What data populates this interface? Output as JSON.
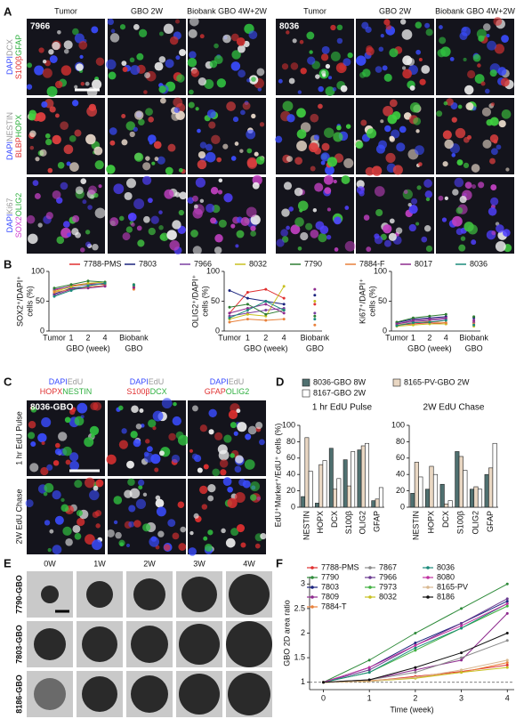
{
  "panels": [
    "A",
    "B",
    "C",
    "D",
    "E",
    "F"
  ],
  "panel_a": {
    "columns": [
      "Tumor",
      "GBO 2W",
      "Biobank GBO 4W+2W",
      "Tumor",
      "GBO 2W",
      "Biobank GBO 4W+2W"
    ],
    "samples": [
      "7966",
      "8036"
    ],
    "rows": [
      [
        [
          {
            "text": "DAPI",
            "color": "#3a4cff"
          },
          {
            "text": "DCX",
            "color": "#9a9a9a"
          }
        ],
        [
          {
            "text": "S100β",
            "color": "#e03030"
          },
          {
            "text": "GFAP",
            "color": "#2fb040"
          }
        ]
      ],
      [
        [
          {
            "text": "DAPI",
            "color": "#3a4cff"
          },
          {
            "text": "NESTIN",
            "color": "#9a9a9a"
          }
        ],
        [
          {
            "text": "BLBP",
            "color": "#e03030"
          },
          {
            "text": "HOPX",
            "color": "#2fb040"
          }
        ]
      ],
      [
        [
          {
            "text": "DAPI",
            "color": "#3a4cff"
          },
          {
            "text": "Ki67",
            "color": "#9a9a9a"
          }
        ],
        [
          {
            "text": "SOX2",
            "color": "#d040d0"
          },
          {
            "text": "OLIG2",
            "color": "#2fb040"
          }
        ]
      ]
    ]
  },
  "panel_c": {
    "sample": "8036-GBO",
    "columns": [
      [
        [
          {
            "text": "DAPI",
            "color": "#3a4cff"
          },
          {
            "text": "EdU",
            "color": "#9a9a9a"
          }
        ],
        [
          {
            "text": "HOPX",
            "color": "#e03030"
          },
          {
            "text": "NESTIN",
            "color": "#2fb040"
          }
        ]
      ],
      [
        [
          {
            "text": "DAPI",
            "color": "#3a4cff"
          },
          {
            "text": "EdU",
            "color": "#9a9a9a"
          }
        ],
        [
          {
            "text": "S100β",
            "color": "#e03030"
          },
          {
            "text": "DCX",
            "color": "#2fb040"
          }
        ]
      ],
      [
        [
          {
            "text": "DAPI",
            "color": "#3a4cff"
          },
          {
            "text": "EdU",
            "color": "#9a9a9a"
          }
        ],
        [
          {
            "text": "GFAP",
            "color": "#e03030"
          },
          {
            "text": "OLIG2",
            "color": "#2fb040"
          }
        ]
      ]
    ],
    "rows": [
      "1 hr EdU Pulse",
      "2W EdU Chase"
    ]
  },
  "panel_e": {
    "columns": [
      "0W",
      "1W",
      "2W",
      "3W",
      "4W"
    ],
    "rows": [
      "7790-GBO",
      "7803-GBO",
      "8186-GBO"
    ]
  },
  "chart_data": [
    {
      "type": "line",
      "y_label": [
        "SOX2⁺/DAPI⁺",
        "cells (%)"
      ],
      "x_label": "GBO (week)",
      "biobank_label": "GBO",
      "categories": [
        "Tumor",
        "1",
        "2",
        "4",
        "Biobank"
      ],
      "ylim": [
        0,
        100
      ],
      "yticks": [
        0,
        50,
        100
      ],
      "series": [
        {
          "name": "7788-PMS",
          "color": "#e03030",
          "values": [
            68,
            76,
            80,
            78,
            72
          ]
        },
        {
          "name": "7803",
          "color": "#1a237e",
          "values": [
            62,
            72,
            74,
            76,
            76
          ]
        },
        {
          "name": "7966",
          "color": "#7b3fa0",
          "values": [
            70,
            75,
            78,
            80,
            74
          ]
        },
        {
          "name": "8032",
          "color": "#c8c020",
          "values": [
            66,
            74,
            80,
            82,
            75
          ]
        },
        {
          "name": "7790",
          "color": "#2e7d32",
          "values": [
            72,
            78,
            84,
            82,
            78
          ]
        },
        {
          "name": "7884-F",
          "color": "#e8803a",
          "values": [
            65,
            70,
            74,
            76,
            70
          ]
        },
        {
          "name": "8017",
          "color": "#8e2a8e",
          "values": [
            60,
            70,
            72,
            75,
            73
          ]
        },
        {
          "name": "8036",
          "color": "#1a8a7a",
          "values": [
            58,
            68,
            76,
            80,
            77
          ]
        }
      ]
    },
    {
      "type": "line",
      "y_label": [
        "OLIG2⁺/DAPI⁺",
        "cells (%)"
      ],
      "x_label": "GBO (week)",
      "biobank_label": "GBO",
      "categories": [
        "Tumor",
        "1",
        "2",
        "4",
        "Biobank"
      ],
      "ylim": [
        0,
        100
      ],
      "yticks": [
        0,
        50,
        100
      ],
      "series": [
        {
          "name": "7788-PMS",
          "color": "#e03030",
          "values": [
            30,
            65,
            70,
            55,
            45
          ]
        },
        {
          "name": "7803",
          "color": "#1a237e",
          "values": [
            68,
            55,
            50,
            45,
            60
          ]
        },
        {
          "name": "7966",
          "color": "#7b3fa0",
          "values": [
            25,
            30,
            35,
            38,
            30
          ]
        },
        {
          "name": "8032",
          "color": "#c8c020",
          "values": [
            20,
            28,
            25,
            75,
            50
          ]
        },
        {
          "name": "7790",
          "color": "#2e7d32",
          "values": [
            40,
            45,
            28,
            35,
            25
          ]
        },
        {
          "name": "7884-F",
          "color": "#e8803a",
          "values": [
            15,
            20,
            18,
            20,
            10
          ]
        },
        {
          "name": "8017",
          "color": "#8e2a8e",
          "values": [
            30,
            38,
            45,
            30,
            70
          ]
        },
        {
          "name": "8036",
          "color": "#1a8a7a",
          "values": [
            22,
            35,
            50,
            35,
            20
          ]
        }
      ]
    },
    {
      "type": "line",
      "y_label": [
        "Ki67⁺/DAPI⁺",
        "cells (%)"
      ],
      "x_label": "GBO (week)",
      "biobank_label": "GBO",
      "categories": [
        "Tumor",
        "1",
        "2",
        "4",
        "Biobank"
      ],
      "ylim": [
        0,
        100
      ],
      "yticks": [
        0,
        50,
        100
      ],
      "series": [
        {
          "name": "7788-PMS",
          "color": "#e03030",
          "values": [
            10,
            12,
            14,
            12,
            15
          ]
        },
        {
          "name": "7803",
          "color": "#1a237e",
          "values": [
            14,
            20,
            22,
            24,
            22
          ]
        },
        {
          "name": "7966",
          "color": "#7b3fa0",
          "values": [
            12,
            16,
            18,
            20,
            14
          ]
        },
        {
          "name": "8032",
          "color": "#c8c020",
          "values": [
            8,
            10,
            12,
            12,
            8
          ]
        },
        {
          "name": "7790",
          "color": "#2e7d32",
          "values": [
            15,
            22,
            25,
            28,
            24
          ]
        },
        {
          "name": "7884-F",
          "color": "#e8803a",
          "values": [
            10,
            14,
            16,
            14,
            12
          ]
        },
        {
          "name": "8017",
          "color": "#8e2a8e",
          "values": [
            12,
            18,
            20,
            22,
            18
          ]
        },
        {
          "name": "8036",
          "color": "#1a8a7a",
          "values": [
            9,
            14,
            15,
            18,
            10
          ]
        }
      ]
    },
    {
      "type": "bar",
      "title": "1 hr EdU Pulse",
      "y_label": "EdU⁺Marker⁺/EdU⁺ cells (%)",
      "categories": [
        "NESTIN",
        "HOPX",
        "DCX",
        "S100β",
        "OLIG2",
        "GFAP"
      ],
      "ylim": [
        0,
        100
      ],
      "yticks": [
        0,
        20,
        40,
        60,
        80,
        100
      ],
      "series": [
        {
          "name": "8036-GBO 8W",
          "color": "#4f7070",
          "values": [
            13,
            5,
            72,
            58,
            70,
            8
          ]
        },
        {
          "name": "8165-PV-GBO 2W",
          "color": "#e9d7c3",
          "values": [
            85,
            52,
            22,
            26,
            75,
            10
          ]
        },
        {
          "name": "8167-GBO 2W",
          "color": "#ffffff",
          "values": [
            44,
            57,
            35,
            68,
            78,
            24
          ]
        }
      ]
    },
    {
      "type": "bar",
      "title": "2W EdU Chase",
      "categories": [
        "NESTIN",
        "HOPX",
        "DCX",
        "S100β",
        "OLIG2",
        "GFAP"
      ],
      "ylim": [
        0,
        100
      ],
      "yticks": [
        0,
        20,
        40,
        60,
        80,
        100
      ],
      "series": [
        {
          "name": "8036-GBO 8W",
          "color": "#4f7070",
          "values": [
            17,
            22,
            28,
            68,
            22,
            40
          ]
        },
        {
          "name": "8165-PV-GBO 2W",
          "color": "#e9d7c3",
          "values": [
            55,
            50,
            4,
            62,
            25,
            48
          ]
        },
        {
          "name": "8167-GBO 2W",
          "color": "#ffffff",
          "values": [
            37,
            40,
            8,
            45,
            22,
            78
          ]
        }
      ]
    },
    {
      "type": "line",
      "x_label": "Time (week)",
      "y_label": "GBO 2D area ratio",
      "x": [
        0,
        1,
        2,
        3,
        4
      ],
      "xlim": [
        -0.3,
        4.15
      ],
      "xticks": [
        0,
        1,
        2,
        3,
        4
      ],
      "ylim": [
        0.85,
        3.15
      ],
      "yticks": [
        1,
        1.5,
        2,
        2.5,
        3
      ],
      "series": [
        {
          "name": "7788-PMS",
          "color": "#e03030",
          "values": [
            1,
            1.02,
            1.12,
            1.22,
            1.35
          ]
        },
        {
          "name": "7790",
          "color": "#2e8b3a",
          "values": [
            1,
            1.45,
            2.0,
            2.5,
            3.0
          ]
        },
        {
          "name": "7803",
          "color": "#1a237e",
          "values": [
            1,
            1.3,
            1.8,
            2.2,
            2.65
          ]
        },
        {
          "name": "7809",
          "color": "#8e2a8e",
          "values": [
            1,
            1.05,
            1.25,
            1.45,
            2.4
          ]
        },
        {
          "name": "7884-T",
          "color": "#e8803a",
          "values": [
            1,
            1.03,
            1.1,
            1.2,
            1.4
          ]
        },
        {
          "name": "7867",
          "color": "#8a8a8a",
          "values": [
            1,
            1.05,
            1.2,
            1.5,
            1.85
          ]
        },
        {
          "name": "7966",
          "color": "#6a3a90",
          "values": [
            1,
            1.25,
            1.75,
            2.2,
            2.7
          ]
        },
        {
          "name": "7973",
          "color": "#40b040",
          "values": [
            1,
            1.2,
            1.65,
            2.1,
            2.55
          ]
        },
        {
          "name": "8032",
          "color": "#c8c020",
          "values": [
            1,
            1.02,
            1.08,
            1.2,
            1.3
          ]
        },
        {
          "name": "8036",
          "color": "#1a8a7a",
          "values": [
            1,
            1.2,
            1.7,
            2.1,
            2.6
          ]
        },
        {
          "name": "8080",
          "color": "#c030a0",
          "values": [
            1,
            1.3,
            1.75,
            2.15,
            2.6
          ]
        },
        {
          "name": "8165-PV",
          "color": "#d8b890",
          "values": [
            1,
            1.02,
            1.1,
            1.25,
            1.45
          ]
        },
        {
          "name": "8186",
          "color": "#111111",
          "values": [
            1,
            1.05,
            1.3,
            1.6,
            2.0
          ]
        }
      ]
    }
  ]
}
